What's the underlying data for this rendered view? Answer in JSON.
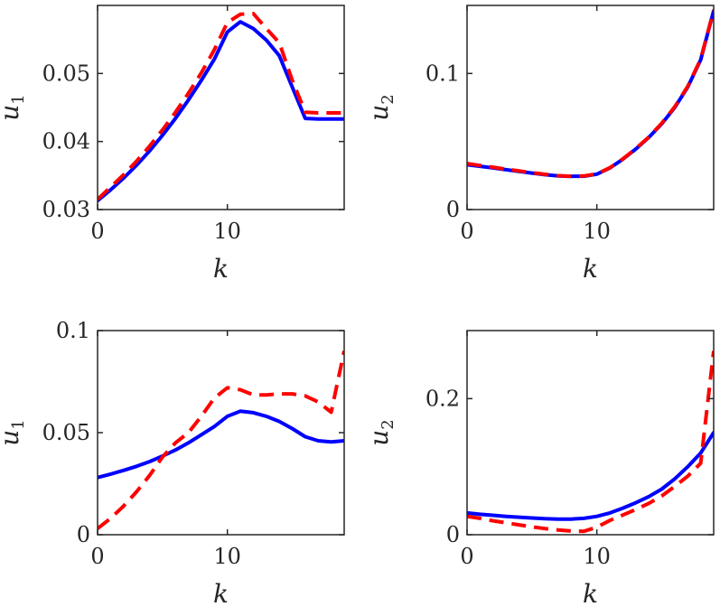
{
  "colors": {
    "solid": "#0000ff",
    "dashed": "#ff0000",
    "axis": "#262626"
  },
  "chart_data": [
    {
      "type": "line",
      "panel": "top-left",
      "xlabel": "k",
      "ylabel": "u",
      "ylabel_sub": "1",
      "xlim": [
        0,
        19
      ],
      "ylim": [
        0.03,
        0.06
      ],
      "xticks": [
        0,
        10
      ],
      "xtick_labels": [
        "0",
        "10"
      ],
      "yticks": [
        0.03,
        0.04,
        0.05
      ],
      "ytick_labels": [
        "0.03",
        "0.04",
        "0.05"
      ],
      "series": [
        {
          "name": "solid",
          "style": "solid",
          "x": [
            0,
            1,
            2,
            3,
            4,
            5,
            6,
            7,
            8,
            9,
            10,
            11,
            12,
            13,
            14,
            15,
            16,
            17,
            18,
            19
          ],
          "y": [
            0.0313,
            0.0329,
            0.0346,
            0.0365,
            0.0386,
            0.0409,
            0.0434,
            0.0461,
            0.049,
            0.0521,
            0.0561,
            0.0576,
            0.0566,
            0.0549,
            0.0526,
            0.048,
            0.0434,
            0.0433,
            0.0433,
            0.0433
          ]
        },
        {
          "name": "dashed",
          "style": "dashed",
          "x": [
            0,
            1,
            2,
            3,
            4,
            5,
            6,
            7,
            8,
            9,
            10,
            11,
            12,
            13,
            14,
            15,
            16,
            17,
            18,
            19
          ],
          "y": [
            0.0315,
            0.0333,
            0.0351,
            0.0371,
            0.0393,
            0.0417,
            0.0443,
            0.0471,
            0.0501,
            0.0535,
            0.0575,
            0.0587,
            0.0588,
            0.0566,
            0.0545,
            0.049,
            0.0443,
            0.0442,
            0.0442,
            0.0442
          ]
        }
      ]
    },
    {
      "type": "line",
      "panel": "top-right",
      "xlabel": "k",
      "ylabel": "u",
      "ylabel_sub": "2",
      "xlim": [
        0,
        19
      ],
      "ylim": [
        0,
        0.15
      ],
      "xticks": [
        0,
        10
      ],
      "xtick_labels": [
        "0",
        "10"
      ],
      "yticks": [
        0,
        0.1
      ],
      "ytick_labels": [
        "0",
        "0.1"
      ],
      "series": [
        {
          "name": "solid",
          "style": "solid",
          "x": [
            0,
            1,
            2,
            3,
            4,
            5,
            6,
            7,
            8,
            9,
            10,
            11,
            12,
            13,
            14,
            15,
            16,
            17,
            18,
            19
          ],
          "y": [
            0.033,
            0.0318,
            0.0306,
            0.0293,
            0.028,
            0.0268,
            0.0256,
            0.0247,
            0.0244,
            0.0245,
            0.026,
            0.0305,
            0.037,
            0.0445,
            0.053,
            0.063,
            0.075,
            0.09,
            0.11,
            0.146
          ]
        },
        {
          "name": "dashed",
          "style": "dashed",
          "x": [
            0,
            1,
            2,
            3,
            4,
            5,
            6,
            7,
            8,
            9,
            10,
            11,
            12,
            13,
            14,
            15,
            16,
            17,
            18,
            19
          ],
          "y": [
            0.0338,
            0.0324,
            0.0311,
            0.0297,
            0.0284,
            0.0271,
            0.0259,
            0.0249,
            0.0245,
            0.0247,
            0.0262,
            0.0307,
            0.0372,
            0.0448,
            0.0533,
            0.0634,
            0.0755,
            0.0905,
            0.1105,
            0.1465
          ]
        }
      ]
    },
    {
      "type": "line",
      "panel": "bottom-left",
      "xlabel": "k",
      "ylabel": "u",
      "ylabel_sub": "1",
      "xlim": [
        0,
        19
      ],
      "ylim": [
        0,
        0.1
      ],
      "xticks": [
        0,
        10
      ],
      "xtick_labels": [
        "0",
        "10"
      ],
      "yticks": [
        0,
        0.05,
        0.1
      ],
      "ytick_labels": [
        "0",
        "0.05",
        "0.1"
      ],
      "series": [
        {
          "name": "solid",
          "style": "solid",
          "x": [
            0,
            1,
            2,
            3,
            4,
            5,
            6,
            7,
            8,
            9,
            10,
            11,
            12,
            13,
            14,
            15,
            16,
            17,
            18,
            19
          ],
          "y": [
            0.028,
            0.0297,
            0.0315,
            0.0335,
            0.0358,
            0.0385,
            0.0415,
            0.045,
            0.049,
            0.053,
            0.058,
            0.0605,
            0.0598,
            0.058,
            0.0555,
            0.052,
            0.048,
            0.046,
            0.0455,
            0.046
          ]
        },
        {
          "name": "dashed",
          "style": "dashed",
          "x": [
            0,
            1,
            2,
            3,
            4,
            5,
            6,
            7,
            8,
            9,
            10,
            11,
            12,
            13,
            14,
            15,
            16,
            17,
            18,
            19
          ],
          "y": [
            0.003,
            0.008,
            0.014,
            0.021,
            0.029,
            0.038,
            0.045,
            0.05,
            0.058,
            0.067,
            0.072,
            0.071,
            0.0685,
            0.0685,
            0.069,
            0.069,
            0.068,
            0.065,
            0.06,
            0.09
          ]
        }
      ]
    },
    {
      "type": "line",
      "panel": "bottom-right",
      "xlabel": "k",
      "ylabel": "u",
      "ylabel_sub": "2",
      "xlim": [
        0,
        19
      ],
      "ylim": [
        0,
        0.3
      ],
      "xticks": [
        0,
        10
      ],
      "xtick_labels": [
        "0",
        "10"
      ],
      "yticks": [
        0,
        0.2
      ],
      "ytick_labels": [
        "0",
        "0.2"
      ],
      "series": [
        {
          "name": "solid",
          "style": "solid",
          "x": [
            0,
            1,
            2,
            3,
            4,
            5,
            6,
            7,
            8,
            9,
            10,
            11,
            12,
            13,
            14,
            15,
            16,
            17,
            18,
            19
          ],
          "y": [
            0.032,
            0.03,
            0.0285,
            0.027,
            0.0258,
            0.0245,
            0.0235,
            0.023,
            0.023,
            0.024,
            0.027,
            0.032,
            0.039,
            0.047,
            0.056,
            0.067,
            0.082,
            0.1,
            0.12,
            0.15
          ]
        },
        {
          "name": "dashed",
          "style": "dashed",
          "x": [
            0,
            1,
            2,
            3,
            4,
            5,
            6,
            7,
            8,
            9,
            10,
            11,
            12,
            13,
            14,
            15,
            16,
            17,
            18,
            19
          ],
          "y": [
            0.027,
            0.024,
            0.0205,
            0.0175,
            0.0145,
            0.0115,
            0.009,
            0.007,
            0.0055,
            0.005,
            0.011,
            0.021,
            0.029,
            0.037,
            0.046,
            0.057,
            0.071,
            0.086,
            0.105,
            0.27
          ]
        }
      ]
    }
  ]
}
